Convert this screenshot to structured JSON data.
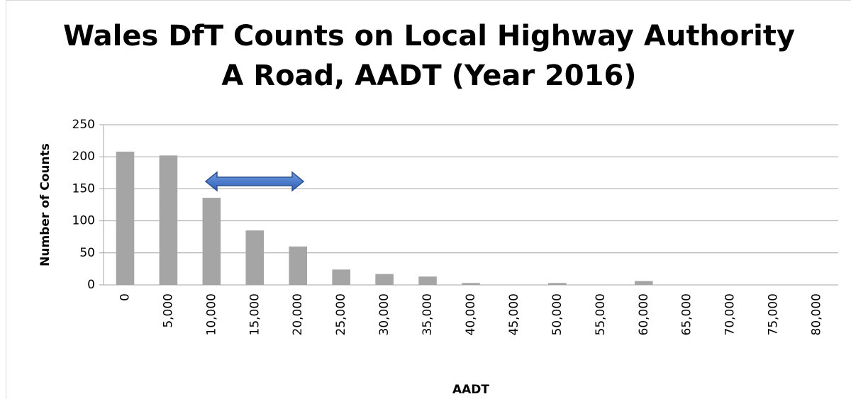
{
  "chart_data": {
    "type": "bar",
    "title": [
      "Wales DfT Counts on Local Highway Authority",
      "A Road, AADT (Year 2016)"
    ],
    "x_label": "AADT",
    "y_label": "Number of Counts",
    "categories": [
      "0",
      "5,000",
      "10,000",
      "15,000",
      "20,000",
      "25,000",
      "30,000",
      "35,000",
      "40,000",
      "45,000",
      "50,000",
      "55,000",
      "60,000",
      "65,000",
      "70,000",
      "75,000",
      "80,000"
    ],
    "values": [
      208,
      202,
      136,
      85,
      60,
      24,
      17,
      13,
      3,
      0,
      3,
      0,
      6,
      0,
      0,
      0,
      0
    ],
    "color": "#a5a5a5",
    "ylim": [
      0,
      250
    ],
    "yticks": [
      0,
      50,
      100,
      150,
      200,
      250
    ],
    "grid": true
  }
}
